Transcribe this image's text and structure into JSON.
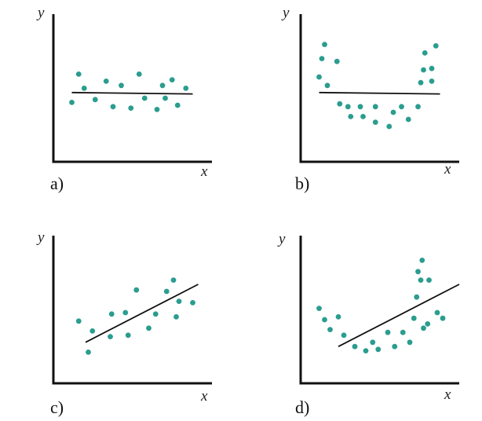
{
  "chart_data": [
    {
      "type": "scatter",
      "panel_label": "a)",
      "xlabel": "x",
      "ylabel": "y",
      "xlim": [
        0,
        10
      ],
      "ylim": [
        0,
        10
      ],
      "point_color": "#2a9d8f",
      "points": [
        [
          1.0,
          4.2
        ],
        [
          1.5,
          6.2
        ],
        [
          1.9,
          5.2
        ],
        [
          2.7,
          4.4
        ],
        [
          3.5,
          5.7
        ],
        [
          4.0,
          3.9
        ],
        [
          4.6,
          5.4
        ],
        [
          5.3,
          3.8
        ],
        [
          5.9,
          6.2
        ],
        [
          6.3,
          4.5
        ],
        [
          7.2,
          3.7
        ],
        [
          7.6,
          5.4
        ],
        [
          7.8,
          4.5
        ],
        [
          8.3,
          5.8
        ],
        [
          8.7,
          4.0
        ],
        [
          9.3,
          5.2
        ]
      ],
      "fit_line": [
        [
          1.0,
          4.9
        ],
        [
          9.8,
          4.8
        ]
      ]
    },
    {
      "type": "scatter",
      "panel_label": "b)",
      "xlabel": "x",
      "ylabel": "y",
      "xlim": [
        0,
        10
      ],
      "ylim": [
        0,
        10
      ],
      "point_color": "#2a9d8f",
      "points": [
        [
          1.0,
          6.0
        ],
        [
          1.2,
          7.3
        ],
        [
          1.4,
          8.3
        ],
        [
          1.6,
          5.4
        ],
        [
          2.3,
          7.1
        ],
        [
          2.5,
          4.1
        ],
        [
          3.1,
          3.9
        ],
        [
          3.3,
          3.2
        ],
        [
          4.0,
          3.9
        ],
        [
          4.2,
          3.2
        ],
        [
          5.1,
          3.9
        ],
        [
          5.1,
          2.8
        ],
        [
          6.1,
          2.5
        ],
        [
          6.4,
          3.5
        ],
        [
          7.0,
          3.9
        ],
        [
          7.5,
          3.0
        ],
        [
          8.2,
          3.9
        ],
        [
          8.4,
          5.6
        ],
        [
          8.6,
          6.5
        ],
        [
          8.7,
          7.7
        ],
        [
          9.2,
          5.7
        ],
        [
          9.2,
          6.6
        ],
        [
          9.5,
          8.2
        ]
      ],
      "fit_line": [
        [
          1.0,
          4.9
        ],
        [
          9.8,
          4.8
        ]
      ]
    },
    {
      "type": "scatter",
      "panel_label": "c)",
      "xlabel": "x",
      "ylabel": "y",
      "xlim": [
        0,
        10
      ],
      "ylim": [
        0,
        10
      ],
      "point_color": "#2a9d8f",
      "points": [
        [
          1.5,
          4.4
        ],
        [
          2.2,
          2.2
        ],
        [
          2.5,
          3.7
        ],
        [
          3.8,
          3.3
        ],
        [
          3.9,
          4.9
        ],
        [
          4.9,
          5.0
        ],
        [
          5.1,
          3.4
        ],
        [
          5.7,
          6.6
        ],
        [
          6.6,
          3.9
        ],
        [
          7.1,
          4.9
        ],
        [
          7.9,
          6.5
        ],
        [
          8.4,
          7.3
        ],
        [
          8.6,
          4.7
        ],
        [
          8.8,
          5.8
        ],
        [
          9.8,
          5.7
        ]
      ],
      "fit_line": [
        [
          2.0,
          2.9
        ],
        [
          10.2,
          7.0
        ]
      ]
    },
    {
      "type": "scatter",
      "panel_label": "d)",
      "xlabel": "x",
      "ylabel": "y",
      "xlim": [
        0,
        10
      ],
      "ylim": [
        0,
        10
      ],
      "point_color": "#2a9d8f",
      "points": [
        [
          1.0,
          5.3
        ],
        [
          1.4,
          4.5
        ],
        [
          1.8,
          3.8
        ],
        [
          2.4,
          4.7
        ],
        [
          2.8,
          3.4
        ],
        [
          3.6,
          2.6
        ],
        [
          4.4,
          2.3
        ],
        [
          4.9,
          2.9
        ],
        [
          5.3,
          2.4
        ],
        [
          6.0,
          3.6
        ],
        [
          6.5,
          2.6
        ],
        [
          7.1,
          3.6
        ],
        [
          7.6,
          2.9
        ],
        [
          7.9,
          4.6
        ],
        [
          8.1,
          6.1
        ],
        [
          8.2,
          7.9
        ],
        [
          8.4,
          7.3
        ],
        [
          8.5,
          8.7
        ],
        [
          8.6,
          3.9
        ],
        [
          8.9,
          4.2
        ],
        [
          9.0,
          7.3
        ],
        [
          9.6,
          5.0
        ],
        [
          10.0,
          4.6
        ]
      ],
      "fit_line": [
        [
          2.4,
          2.6
        ],
        [
          11.2,
          7.0
        ]
      ]
    }
  ]
}
